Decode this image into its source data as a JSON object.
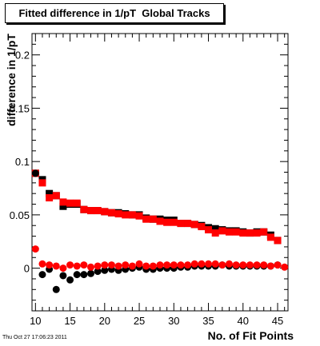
{
  "chart_data": {
    "type": "scatter",
    "title": "Fitted difference in 1/pT  Global Tracks",
    "xlabel": "No. of Fit Points",
    "ylabel": "difference in 1/pT",
    "xlim": [
      9.5,
      46.5
    ],
    "ylim": [
      -0.04,
      0.22
    ],
    "x_ticks": [
      10,
      15,
      20,
      25,
      30,
      35,
      40,
      45
    ],
    "y_ticks": [
      0,
      0.05,
      0.1,
      0.15,
      0.2
    ],
    "y_tick_labels": [
      "0",
      "0.05",
      "0.1",
      "0.15",
      "0.2"
    ],
    "timestamp": "Thu Oct 27 17:06:23 2011",
    "series": [
      {
        "marker": "square",
        "color": "#000000",
        "x": [
          10,
          11,
          12,
          13,
          14,
          15,
          16,
          17,
          18,
          19,
          20,
          21,
          22,
          23,
          24,
          25,
          26,
          27,
          28,
          29,
          30,
          31,
          32,
          33,
          34,
          35,
          36,
          37,
          38,
          39,
          40,
          41,
          42,
          43,
          44,
          45
        ],
        "y": [
          0.089,
          0.083,
          0.07,
          0.068,
          0.058,
          0.06,
          0.06,
          0.055,
          0.054,
          0.054,
          0.053,
          0.052,
          0.052,
          0.051,
          0.05,
          0.05,
          0.047,
          0.046,
          0.046,
          0.045,
          0.045,
          0.042,
          0.042,
          0.041,
          0.04,
          0.038,
          0.037,
          0.036,
          0.035,
          0.035,
          0.034,
          0.033,
          0.034,
          0.034,
          0.031,
          0.026
        ]
      },
      {
        "marker": "square",
        "color": "#ff0000",
        "x": [
          10,
          11,
          12,
          13,
          14,
          15,
          16,
          17,
          18,
          19,
          20,
          21,
          22,
          23,
          24,
          25,
          26,
          27,
          28,
          29,
          30,
          31,
          32,
          33,
          34,
          35,
          36,
          37,
          38,
          39,
          40,
          41,
          42,
          43,
          44,
          45
        ],
        "y": [
          0.089,
          0.08,
          0.066,
          0.068,
          0.062,
          0.061,
          0.061,
          0.055,
          0.054,
          0.054,
          0.053,
          0.052,
          0.051,
          0.05,
          0.05,
          0.049,
          0.046,
          0.046,
          0.044,
          0.043,
          0.043,
          0.042,
          0.042,
          0.041,
          0.039,
          0.036,
          0.033,
          0.035,
          0.034,
          0.034,
          0.033,
          0.033,
          0.033,
          0.034,
          0.029,
          0.026
        ]
      },
      {
        "marker": "circle",
        "color": "#000000",
        "x": [
          10,
          11,
          12,
          13,
          14,
          15,
          16,
          17,
          18,
          19,
          20,
          21,
          22,
          23,
          24,
          25,
          26,
          27,
          28,
          29,
          30,
          31,
          32,
          33,
          34,
          35,
          36,
          37,
          38,
          39,
          40,
          41,
          42,
          43,
          44,
          45
        ],
        "y": [
          0.089,
          -0.006,
          -0.001,
          -0.02,
          -0.007,
          -0.011,
          -0.006,
          -0.006,
          -0.005,
          -0.003,
          -0.002,
          -0.001,
          -0.002,
          -0.001,
          0.0,
          0.001,
          -0.001,
          -0.001,
          0.0,
          0.0,
          0.0,
          0.001,
          0.001,
          0.002,
          0.002,
          0.002,
          0.002,
          0.003,
          0.002,
          0.002,
          0.002,
          0.002,
          0.002,
          0.002,
          0.002,
          0.003
        ]
      },
      {
        "marker": "circle",
        "color": "#ff0000",
        "x": [
          10,
          11,
          12,
          13,
          14,
          15,
          16,
          17,
          18,
          19,
          20,
          21,
          22,
          23,
          24,
          25,
          26,
          27,
          28,
          29,
          30,
          31,
          32,
          33,
          34,
          35,
          36,
          37,
          38,
          39,
          40,
          41,
          42,
          43,
          44,
          45,
          46
        ],
        "y": [
          0.018,
          0.004,
          0.003,
          0.002,
          0.0,
          0.003,
          0.002,
          0.003,
          0.001,
          0.002,
          0.003,
          0.003,
          0.002,
          0.003,
          0.002,
          0.004,
          0.002,
          0.002,
          0.003,
          0.003,
          0.003,
          0.003,
          0.003,
          0.004,
          0.004,
          0.004,
          0.004,
          0.003,
          0.004,
          0.003,
          0.003,
          0.003,
          0.003,
          0.003,
          0.002,
          0.003,
          0.001
        ]
      }
    ]
  }
}
